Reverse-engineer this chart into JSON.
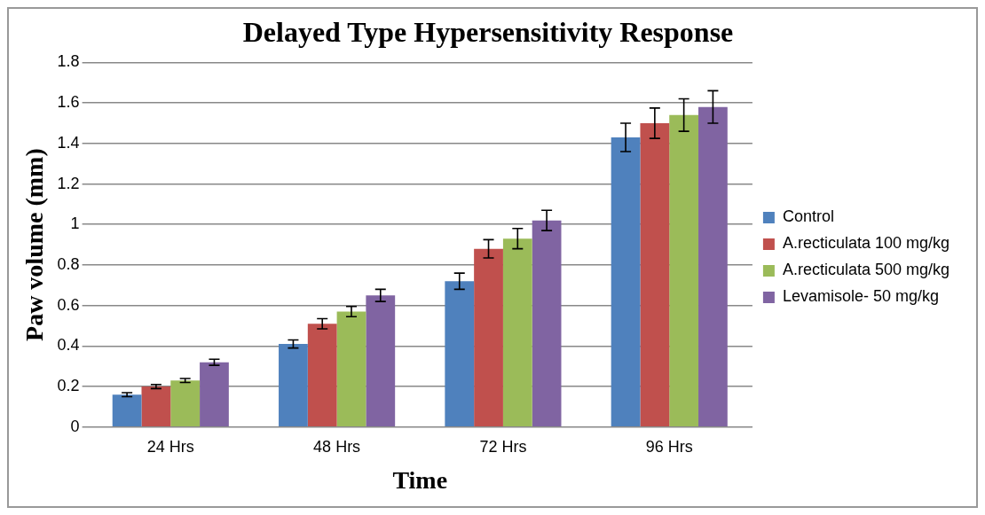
{
  "chart_data": {
    "type": "bar",
    "title": "Delayed Type Hypersensitivity Response",
    "xlabel": "Time",
    "ylabel": "Paw volume (mm)",
    "categories": [
      "24 Hrs",
      "48 Hrs",
      "72 Hrs",
      "96 Hrs"
    ],
    "series": [
      {
        "name": "Control",
        "color": "#4f81bd",
        "values": [
          0.16,
          0.41,
          0.72,
          1.43
        ],
        "errors": [
          0.01,
          0.02,
          0.04,
          0.07
        ]
      },
      {
        "name": "A.recticulata 100 mg/kg",
        "color": "#c0504d",
        "values": [
          0.2,
          0.51,
          0.88,
          1.5
        ],
        "errors": [
          0.01,
          0.025,
          0.045,
          0.075
        ]
      },
      {
        "name": "A.recticulata 500 mg/kg",
        "color": "#9bbb59",
        "values": [
          0.23,
          0.57,
          0.93,
          1.54
        ],
        "errors": [
          0.01,
          0.025,
          0.05,
          0.08
        ]
      },
      {
        "name": "Levamisole- 50 mg/kg",
        "color": "#8064a2",
        "values": [
          0.32,
          0.65,
          1.02,
          1.58
        ],
        "errors": [
          0.015,
          0.03,
          0.05,
          0.08
        ]
      }
    ],
    "ylim": [
      0,
      1.8
    ],
    "yticks": [
      0,
      0.2,
      0.4,
      0.6,
      0.8,
      1,
      1.2,
      1.4,
      1.6,
      1.8
    ],
    "grid": "y",
    "legend": "right"
  }
}
